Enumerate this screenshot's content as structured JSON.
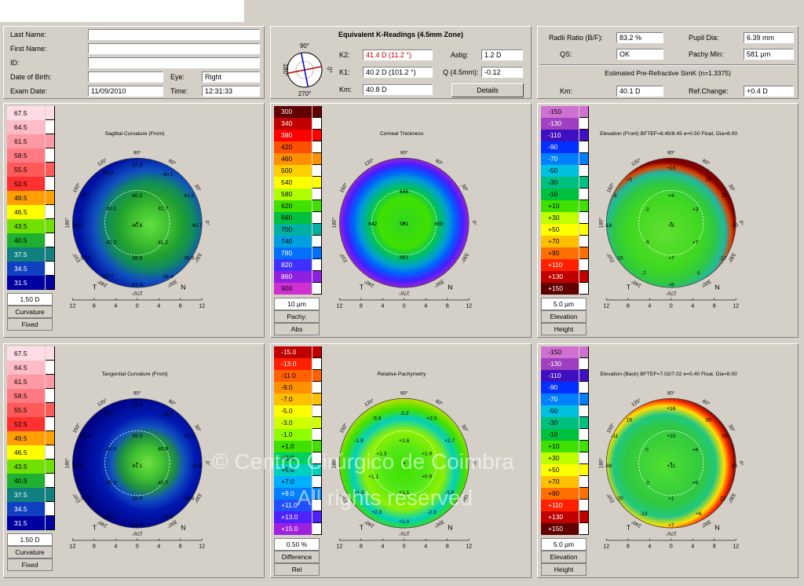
{
  "patient": {
    "labels": {
      "last_name": "Last Name:",
      "first_name": "First Name:",
      "id": "ID:",
      "dob": "Date of Birth:",
      "eye": "Eye:",
      "exam_date": "Exam Date:",
      "time": "Time:"
    },
    "values": {
      "last_name": "",
      "first_name": "",
      "id": "",
      "dob": "",
      "eye": "Right",
      "exam_date": "11/09/2010",
      "time": "12:31:33"
    }
  },
  "kreadings": {
    "title": "Equivalent K-Readings (4.5mm Zone)",
    "k2_label": "K2:",
    "k2_value": "41.4 D  (11.2 °)",
    "k1_label": "K1:",
    "k1_value": "40.2 D  (101.2 °)",
    "km_label": "Km:",
    "km_value": "40.8 D",
    "astig_label": "Astig:",
    "astig_value": "1.2 D",
    "q_label": "Q (4.5mm):",
    "q_value": "-0.12",
    "details_label": "Details",
    "compass": {
      "top": "90°",
      "bottom": "270°",
      "left": "180°",
      "right": "0°",
      "k2_axis_deg": 11.2,
      "k1_axis_deg": 101.2
    }
  },
  "ratios": {
    "radii_label": "Radii Ratio (B/F):",
    "radii_value": "83.2 %",
    "pupil_label": "Pupil Dia:",
    "pupil_value": "6.39 mm",
    "qs_label": "QS:",
    "qs_value": "OK",
    "pachy_label": "Pachy Min:",
    "pachy_value": "581 µm",
    "simk_title": "Estimated Pre-Refractive SimK (n=1.3375)",
    "km_label": "Km:",
    "km_value": "40.1 D",
    "ref_label": "Ref.Change:",
    "ref_value": "+0.4 D"
  },
  "common": {
    "degrees": [
      "90°",
      "60°",
      "30°",
      "0°",
      "330°",
      "300°",
      "270°",
      "240°",
      "210°",
      "180°",
      "150°",
      "120°"
    ],
    "axis_ticks": [
      "12",
      "8",
      "4",
      "0",
      "4",
      "8",
      "12"
    ],
    "temporal": "T",
    "nasal": "N"
  },
  "maps": [
    {
      "title": "Sagittal Curvature (Front)",
      "scale": {
        "values": [
          "67.5",
          "64.5",
          "61.5",
          "58.5",
          "55.5",
          "52.5",
          "49.5",
          "46.5",
          "43.5",
          "40.5",
          "37.5",
          "34.5",
          "31.5"
        ],
        "colors": [
          "#ffdce6",
          "#ffbcc6",
          "#ff9aa4",
          "#ff7a82",
          "#ff5a5a",
          "#ff3030",
          "#ffa000",
          "#ffff00",
          "#70e000",
          "#20b030",
          "#108080",
          "#1040c0",
          "#0000a0"
        ],
        "foot": [
          "1.50 D",
          "Curvature",
          "Fixed"
        ]
      },
      "values": [
        {
          "t": "37.8",
          "x": 0,
          "y": -7.2
        },
        {
          "t": "38.3",
          "x": -3.6,
          "y": -6.2
        },
        {
          "t": "40.1",
          "x": 3.8,
          "y": -6
        },
        {
          "t": "37.7",
          "x": -6.4,
          "y": -3.4
        },
        {
          "t": "40.2",
          "x": 0,
          "y": -3.4
        },
        {
          "t": "41.0",
          "x": 6.4,
          "y": -3.4
        },
        {
          "t": "40.1",
          "x": -3.2,
          "y": -1.8
        },
        {
          "t": "41.7",
          "x": 3.2,
          "y": -1.8
        },
        {
          "t": "38.0",
          "x": -7.4,
          "y": 0.3
        },
        {
          "t": "40.6",
          "x": 0,
          "y": 0.3
        },
        {
          "t": "40.7",
          "x": 7.4,
          "y": 0.3
        },
        {
          "t": "40.2",
          "x": -3.2,
          "y": 2.4
        },
        {
          "t": "41.2",
          "x": 3.2,
          "y": 2.4
        },
        {
          "t": "37.7",
          "x": -6.4,
          "y": 4.3
        },
        {
          "t": "39.5",
          "x": 0,
          "y": 4.3
        },
        {
          "t": "39.9",
          "x": 6.4,
          "y": 4.3
        },
        {
          "t": "37.7",
          "x": -3.6,
          "y": 6.6
        },
        {
          "t": "38.4",
          "x": 3.8,
          "y": 6.6
        },
        {
          "t": "37.4",
          "x": 0,
          "y": 7.6
        }
      ]
    },
    {
      "title": "Corneal Thickness",
      "scale": {
        "values": [
          "300",
          "340",
          "380",
          "420",
          "460",
          "500",
          "540",
          "580",
          "620",
          "660",
          "700",
          "740",
          "780",
          "820",
          "860",
          "900"
        ],
        "colors": [
          "#600000",
          "#c00000",
          "#ff0000",
          "#ff5000",
          "#ff9000",
          "#ffd000",
          "#ffff00",
          "#b0ff00",
          "#40e000",
          "#00c040",
          "#00b0a0",
          "#00a0e0",
          "#0070ff",
          "#4030ff",
          "#9020e0",
          "#d030d0"
        ],
        "foot": [
          "10 µm",
          "Pachy.",
          "Abs"
        ]
      },
      "values": [
        {
          "t": "646",
          "x": 0,
          "y": -3.9
        },
        {
          "t": "642",
          "x": -3.9,
          "y": 0.1
        },
        {
          "t": "581",
          "x": 0,
          "y": 0.1
        },
        {
          "t": "650",
          "x": 4.3,
          "y": 0.1
        },
        {
          "t": "661",
          "x": 0,
          "y": 4.2
        }
      ]
    },
    {
      "title": "Elevation (Front)  BFTEF=8.45/8.45 e=0.50 Float, Dia=8.00",
      "scale": {
        "values": [
          "-150",
          "-130",
          "-110",
          "-90",
          "-70",
          "-50",
          "-30",
          "-10",
          "+10",
          "+30",
          "+50",
          "+70",
          "+90",
          "+110",
          "+130",
          "+150"
        ],
        "colors": [
          "#d070d0",
          "#a040c0",
          "#4010c0",
          "#0030ff",
          "#0080ff",
          "#00c0e0",
          "#00c080",
          "#00c040",
          "#40e000",
          "#c0ff00",
          "#ffff00",
          "#ffc000",
          "#ff7000",
          "#ff2000",
          "#c00000",
          "#600000"
        ],
        "foot": [
          "5.0 µm",
          "Elevation",
          "Height"
        ]
      },
      "values": [
        {
          "t": "+15",
          "x": 0,
          "y": -6.8
        },
        {
          "t": "+5",
          "x": -5.2,
          "y": -5.4
        },
        {
          "t": "13",
          "x": 4.6,
          "y": -5.4
        },
        {
          "t": "-5",
          "x": -7,
          "y": -3.4
        },
        {
          "t": "+4",
          "x": 0,
          "y": -3.4
        },
        {
          "t": "27",
          "x": 6.6,
          "y": -3.4
        },
        {
          "t": "-2",
          "x": -3,
          "y": -1.7
        },
        {
          "t": "+3",
          "x": 3,
          "y": -1.7
        },
        {
          "t": "-18",
          "x": -7.8,
          "y": 0.3
        },
        {
          "t": "+8",
          "x": 0,
          "y": 0.3
        },
        {
          "t": "-30",
          "x": 7.8,
          "y": 0.3
        },
        {
          "t": "-5",
          "x": -3,
          "y": 2.4
        },
        {
          "t": "+7",
          "x": 3,
          "y": 2.4
        },
        {
          "t": "-15",
          "x": -6.4,
          "y": 4.3
        },
        {
          "t": "+7",
          "x": 0,
          "y": 4.3
        },
        {
          "t": "-17",
          "x": 6.4,
          "y": 4.3
        },
        {
          "t": "-7",
          "x": -3.4,
          "y": 6.2
        },
        {
          "t": "0",
          "x": 3.4,
          "y": 6.2
        },
        {
          "t": "+9",
          "x": 0,
          "y": 7.6
        }
      ]
    },
    {
      "title": "Tangential Curvature (Front)",
      "scale": {
        "values": [
          "67.5",
          "64.5",
          "61.5",
          "58.5",
          "55.5",
          "52.5",
          "49.5",
          "46.5",
          "43.5",
          "40.5",
          "37.5",
          "34.5",
          "31.5"
        ],
        "colors": [
          "#ffdce6",
          "#ffbcc6",
          "#ff9aa4",
          "#ff7a82",
          "#ff5a5a",
          "#ff3030",
          "#ffa000",
          "#ffff00",
          "#70e000",
          "#20b030",
          "#108080",
          "#1040c0",
          "#0000a0"
        ],
        "foot": [
          "1.50 D",
          "Curvature",
          "Fixed"
        ]
      },
      "values": [
        {
          "t": "31.6",
          "x": 0,
          "y": -7.2
        },
        {
          "t": "32.2",
          "x": -3.6,
          "y": -6.2
        },
        {
          "t": "36.7",
          "x": 3.8,
          "y": -6
        },
        {
          "t": "28.3",
          "x": -6.4,
          "y": -3.4
        },
        {
          "t": "39.3",
          "x": 0,
          "y": -3.4
        },
        {
          "t": "37.4",
          "x": 6.4,
          "y": -3.4
        },
        {
          "t": "40.0",
          "x": -3.2,
          "y": -1.8
        },
        {
          "t": "40.9",
          "x": 3.2,
          "y": -1.8
        },
        {
          "t": "30.8",
          "x": -7.4,
          "y": 0.3
        },
        {
          "t": "41.1",
          "x": 0,
          "y": 0.3
        },
        {
          "t": "36.6",
          "x": 7.4,
          "y": 0.3
        },
        {
          "t": "39.3",
          "x": -3.2,
          "y": 2.4
        },
        {
          "t": "40.7",
          "x": 3.2,
          "y": 2.4
        },
        {
          "t": "31.7",
          "x": -6.4,
          "y": 4.3
        },
        {
          "t": "38.6",
          "x": 0,
          "y": 4.3
        },
        {
          "t": "36.8",
          "x": 6.4,
          "y": 4.3
        },
        {
          "t": "31.8",
          "x": -3.6,
          "y": 6.6
        },
        {
          "t": "32.5",
          "x": 3.8,
          "y": 6.6
        },
        {
          "t": "31.5",
          "x": 0,
          "y": 7.6
        }
      ]
    },
    {
      "title": "Relative Pachymetry",
      "scale": {
        "values": [
          "-15.0",
          "-13.0",
          "-11.0",
          "-9.0",
          "-7.0",
          "-5.0",
          "-3.0",
          "-1.0",
          "+1.0",
          "+3.0",
          "+5.0",
          "+7.0",
          "+9.0",
          "+11.0",
          "+13.0",
          "+15.0"
        ],
        "colors": [
          "#c00000",
          "#ff2000",
          "#ff6000",
          "#ff9000",
          "#ffc000",
          "#ffff00",
          "#d0ff00",
          "#90ff00",
          "#40e000",
          "#00d060",
          "#00d0c0",
          "#00b0ff",
          "#0080ff",
          "#2050ff",
          "#5020ff",
          "#a020e0"
        ],
        "foot": [
          "0.50 %",
          "Difference",
          "Rel"
        ]
      },
      "values": [
        {
          "t": "-5.8",
          "x": -3.4,
          "y": -5.6
        },
        {
          "t": "-2.2",
          "x": 0,
          "y": -6.2
        },
        {
          "t": "+2.0",
          "x": 3.4,
          "y": -5.6
        },
        {
          "t": "-1.9",
          "x": -5.6,
          "y": -2.8
        },
        {
          "t": "+1.6",
          "x": 0,
          "y": -2.8
        },
        {
          "t": "+2.7",
          "x": 5.6,
          "y": -2.8
        },
        {
          "t": "+1.3",
          "x": -2.8,
          "y": -1.2
        },
        {
          "t": "+1.9",
          "x": 2.8,
          "y": -1.2
        },
        {
          "t": "+1.1",
          "x": -3.8,
          "y": 1.6
        },
        {
          "t": "+0.9",
          "x": 2.8,
          "y": 1.6
        },
        {
          "t": "+1.9",
          "x": -5.6,
          "y": 3.6
        },
        {
          "t": "+1.1",
          "x": 0,
          "y": 3.6
        },
        {
          "t": "-3.8",
          "x": 5.6,
          "y": 3.6
        },
        {
          "t": "+2.0",
          "x": -3.4,
          "y": 6.0
        },
        {
          "t": "-2.3",
          "x": 3.4,
          "y": 6.0
        },
        {
          "t": "+1.0",
          "x": 0,
          "y": 7.2
        }
      ]
    },
    {
      "title": "Elevation (Back)  BFTEF=7.02/7.02 e=0.40 Float, Dia=8.00",
      "scale": {
        "values": [
          "-150",
          "-130",
          "-110",
          "-90",
          "-70",
          "-50",
          "-30",
          "-10",
          "+10",
          "+30",
          "+50",
          "+70",
          "+90",
          "+110",
          "+130",
          "+150"
        ],
        "colors": [
          "#d070d0",
          "#a040c0",
          "#4010c0",
          "#0030ff",
          "#0080ff",
          "#00c0e0",
          "#00c080",
          "#00c040",
          "#40e000",
          "#c0ff00",
          "#ffff00",
          "#ffc000",
          "#ff7000",
          "#ff2000",
          "#c00000",
          "#600000"
        ],
        "foot": [
          "5.0 µm",
          "Elevation",
          "Height"
        ]
      },
      "values": [
        {
          "t": "+16",
          "x": 0,
          "y": -6.8
        },
        {
          "t": "16",
          "x": -5.2,
          "y": -5.4
        },
        {
          "t": "35",
          "x": 4.6,
          "y": -5.4
        },
        {
          "t": "-11",
          "x": -7,
          "y": -3.4
        },
        {
          "t": "+10",
          "x": 0,
          "y": -3.4
        },
        {
          "t": "50",
          "x": 6.6,
          "y": -3.4
        },
        {
          "t": "0",
          "x": -3,
          "y": -1.7
        },
        {
          "t": "+6",
          "x": 3,
          "y": -1.7
        },
        {
          "t": "-38",
          "x": -7.8,
          "y": 0.3
        },
        {
          "t": "+11",
          "x": 0,
          "y": 0.3
        },
        {
          "t": "33",
          "x": 7.8,
          "y": 0.3
        },
        {
          "t": "-2",
          "x": -3,
          "y": 2.4
        },
        {
          "t": "+6",
          "x": 3,
          "y": 2.4
        },
        {
          "t": "-20",
          "x": -6.4,
          "y": 4.3
        },
        {
          "t": "+1",
          "x": 0,
          "y": 4.3
        },
        {
          "t": "22",
          "x": 6.4,
          "y": 4.3
        },
        {
          "t": "-13",
          "x": -3.4,
          "y": 6.2
        },
        {
          "t": "+6",
          "x": 3.4,
          "y": 6.2
        },
        {
          "t": "+7",
          "x": 0,
          "y": 7.6
        }
      ]
    }
  ],
  "watermark": {
    "line1": "© Centro Cirúrgico de Coimbra",
    "line2": "All rights reserved"
  }
}
